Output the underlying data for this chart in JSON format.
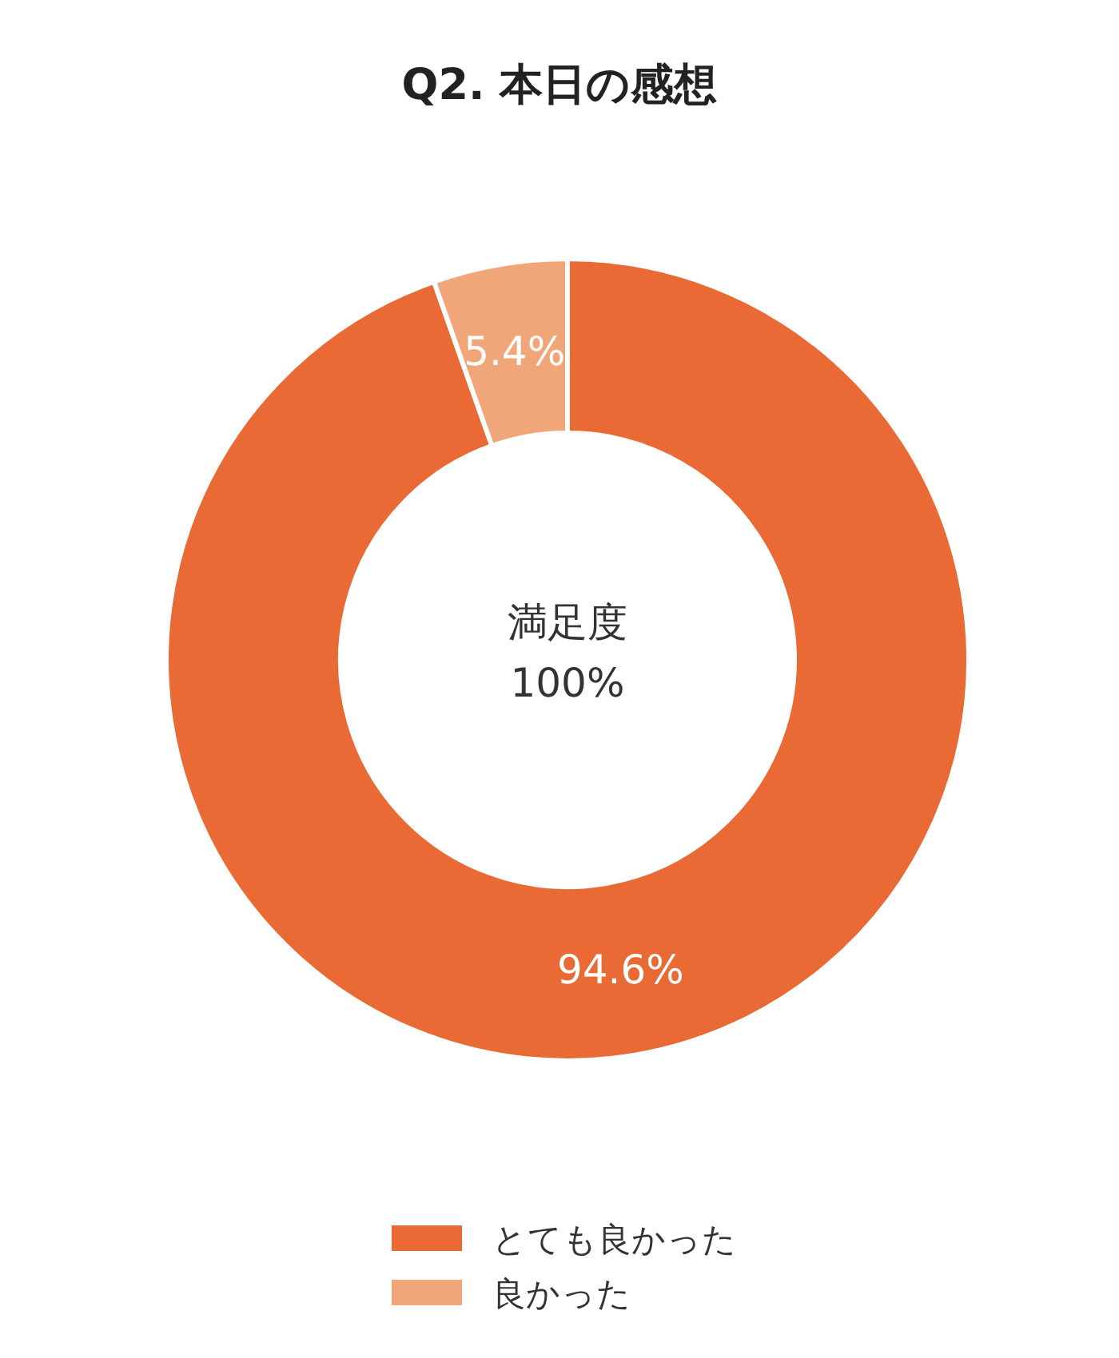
{
  "chart_data": {
    "type": "donut",
    "title": "Q2. 本日の感想",
    "categories": [
      "とても良かった",
      "良かった"
    ],
    "values": [
      94.6,
      5.4
    ],
    "colors": [
      "#e96a35",
      "#f0a679"
    ],
    "value_labels": [
      "94.6%",
      "5.4%"
    ],
    "annotations": [
      "満足度\n100%"
    ],
    "legend": "bottom"
  }
}
